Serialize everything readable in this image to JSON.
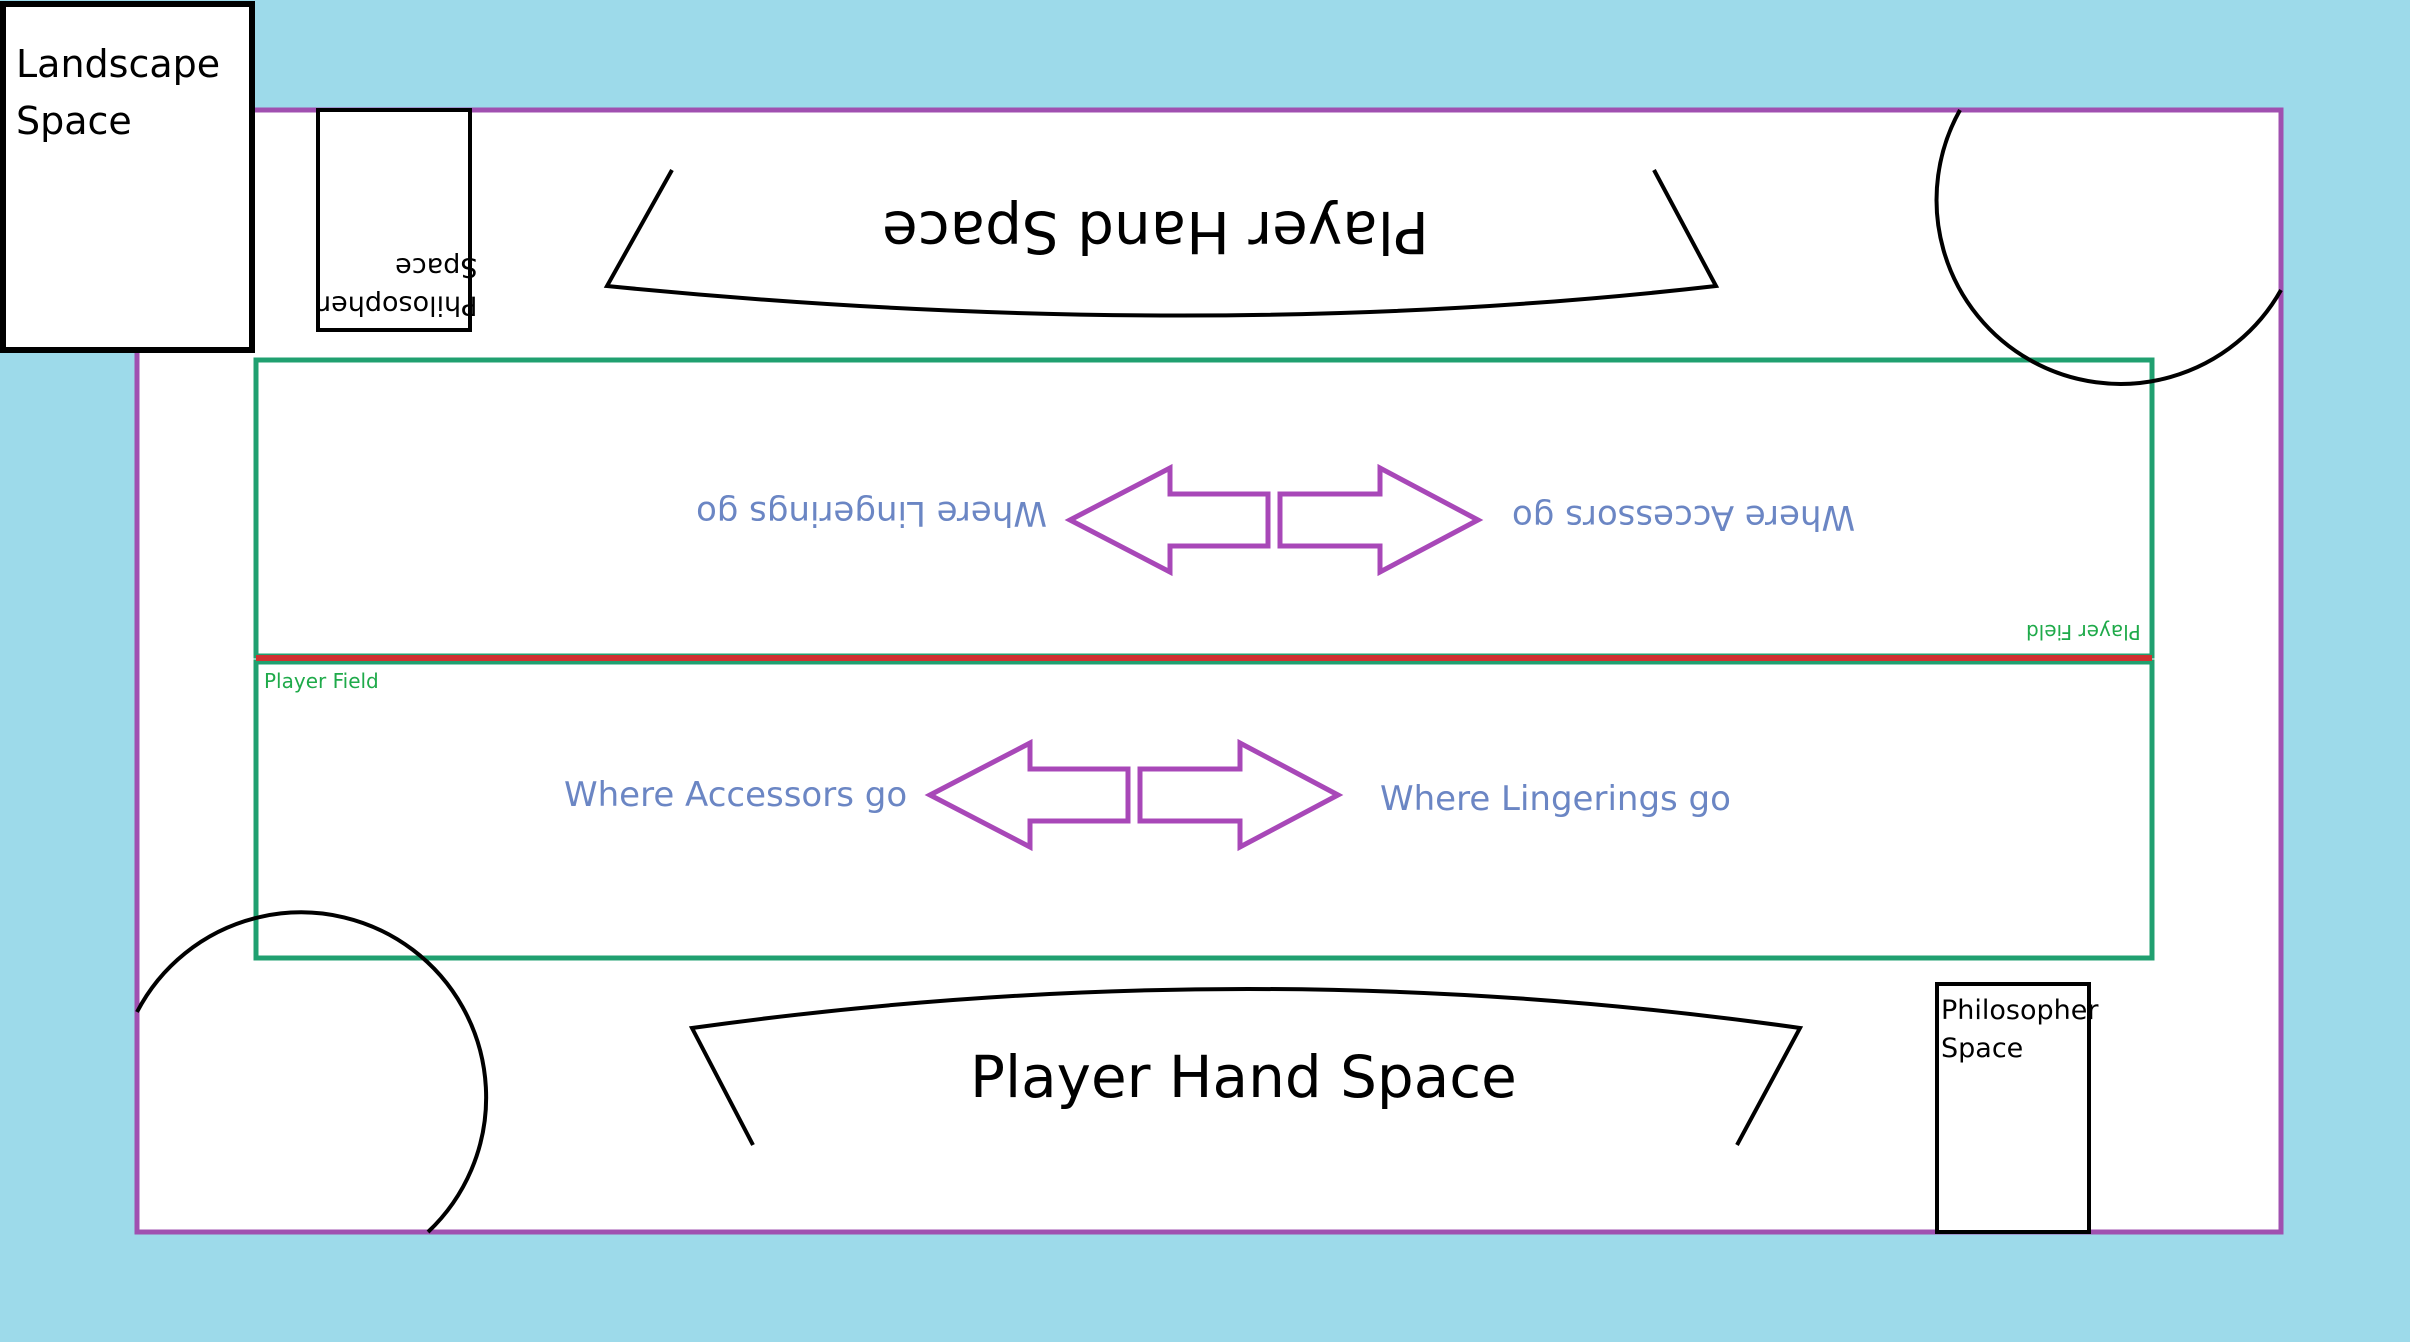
{
  "landscape": {
    "label": "Landscape\nSpace"
  },
  "hand_space": {
    "label": "Player Hand Space"
  },
  "philosopher_space": {
    "label": "Philosopher\nSpace"
  },
  "field": {
    "label": "Player Field"
  },
  "zones": {
    "accessors": "Where Accessors go",
    "lingerings": "Where Lingerings go"
  },
  "colors": {
    "background": "#9ddaea",
    "board_border": "#a050b0",
    "field_border": "#20a070",
    "divider": "#d03030",
    "arrow": "#a848b8",
    "zone_text": "#6b86c4",
    "field_text": "#1faa4a"
  }
}
